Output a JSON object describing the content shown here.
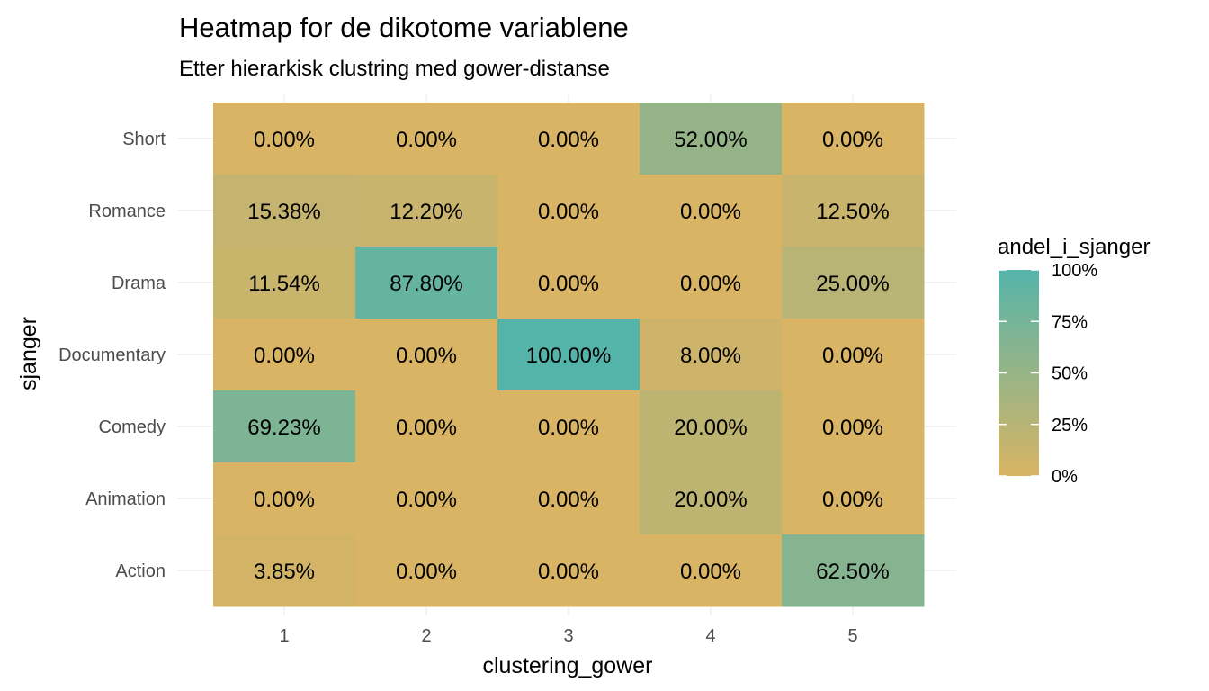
{
  "chart_data": {
    "type": "heatmap",
    "title": "Heatmap for de dikotome variablene",
    "subtitle": "Etter hierarkisk clustring med gower-distanse",
    "xlabel": "clustering_gower",
    "ylabel": "sjanger",
    "x_categories": [
      "1",
      "2",
      "3",
      "4",
      "5"
    ],
    "y_categories": [
      "Short",
      "Romance",
      "Drama",
      "Documentary",
      "Comedy",
      "Animation",
      "Action"
    ],
    "values": [
      [
        0.0,
        0.0,
        0.0,
        52.0,
        0.0
      ],
      [
        15.38,
        12.2,
        0.0,
        0.0,
        12.5
      ],
      [
        11.54,
        87.8,
        0.0,
        0.0,
        25.0
      ],
      [
        0.0,
        0.0,
        100.0,
        8.0,
        0.0
      ],
      [
        69.23,
        0.0,
        0.0,
        20.0,
        0.0
      ],
      [
        0.0,
        0.0,
        0.0,
        20.0,
        0.0
      ],
      [
        3.85,
        0.0,
        0.0,
        0.0,
        62.5
      ]
    ],
    "cell_labels": [
      [
        "0.00%",
        "0.00%",
        "0.00%",
        "52.00%",
        "0.00%"
      ],
      [
        "15.38%",
        "12.20%",
        "0.00%",
        "0.00%",
        "12.50%"
      ],
      [
        "11.54%",
        "87.80%",
        "0.00%",
        "0.00%",
        "25.00%"
      ],
      [
        "0.00%",
        "0.00%",
        "100.00%",
        "8.00%",
        "0.00%"
      ],
      [
        "69.23%",
        "0.00%",
        "0.00%",
        "20.00%",
        "0.00%"
      ],
      [
        "0.00%",
        "0.00%",
        "0.00%",
        "20.00%",
        "0.00%"
      ],
      [
        "3.85%",
        "0.00%",
        "0.00%",
        "0.00%",
        "62.50%"
      ]
    ],
    "color_scale": {
      "low": "#d8b464",
      "high": "#55b4aa",
      "range": [
        0,
        100
      ]
    },
    "legend": {
      "title": "andel_i_sjanger",
      "placement": "right",
      "breaks": [
        100,
        75,
        50,
        25,
        0
      ],
      "labels": [
        "100%",
        "75%",
        "50%",
        "25%",
        "0%"
      ]
    },
    "grid": true
  }
}
